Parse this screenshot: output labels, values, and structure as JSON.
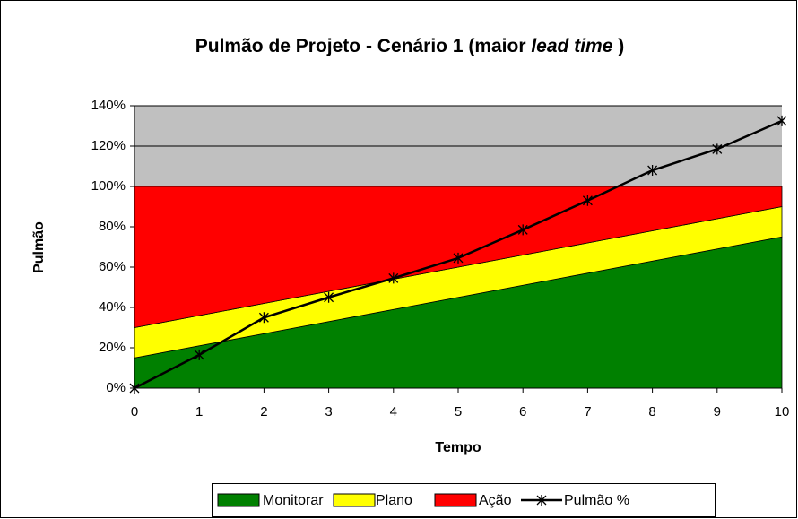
{
  "chart_data": {
    "type": "stacked_area_line",
    "title": [
      "Pulmão de Projeto - Cenário 1 (maior ",
      "lead time",
      " )"
    ],
    "x_label": "Tempo",
    "y_label": "Pulmão",
    "x": [
      0,
      1,
      2,
      3,
      4,
      5,
      6,
      7,
      8,
      9,
      10
    ],
    "xlim": [
      0,
      10
    ],
    "xticks": [
      0,
      1,
      2,
      3,
      4,
      5,
      6,
      7,
      8,
      9,
      10
    ],
    "ylim": [
      0,
      140
    ],
    "yticks": [
      {
        "value": 0,
        "label": "0%"
      },
      {
        "value": 20,
        "label": "20%"
      },
      {
        "value": 40,
        "label": "40%"
      },
      {
        "value": 60,
        "label": "60%"
      },
      {
        "value": 80,
        "label": "80%"
      },
      {
        "value": 100,
        "label": "100%"
      },
      {
        "value": 120,
        "label": "120%"
      },
      {
        "value": 140,
        "label": "140%"
      }
    ],
    "grid": true,
    "plot_background": "#c0c0c0",
    "legend": "bottom",
    "series": [
      {
        "name": "Monitorar",
        "type": "area",
        "color": "#008000",
        "values": [
          15,
          21,
          27,
          33,
          39,
          45,
          51,
          57,
          63,
          69,
          75
        ]
      },
      {
        "name": "Plano",
        "type": "area",
        "color": "#ffff00",
        "values": [
          15,
          15,
          15,
          15,
          15,
          15,
          15,
          15,
          15,
          15,
          15
        ]
      },
      {
        "name": "Ação",
        "type": "area",
        "color": "#ff0000",
        "values": [
          70,
          64,
          58,
          52,
          46,
          40,
          34,
          28,
          22,
          16,
          10
        ]
      },
      {
        "name": "Pulmão %",
        "type": "line",
        "color": "#000000",
        "values": [
          0,
          16.5,
          35,
          45,
          54.5,
          64.5,
          78.5,
          93,
          108,
          118.5,
          132.5
        ]
      }
    ]
  }
}
